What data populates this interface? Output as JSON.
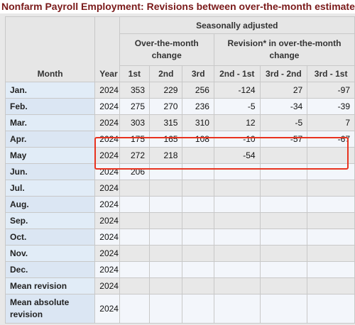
{
  "caption": "Nonfarm Payroll Employment: Revisions between over-the-month estimates",
  "headers": {
    "month": "Month",
    "year": "Year",
    "seasonally_adjusted": "Seasonally adjusted",
    "otm_change": "Over-the-month change",
    "revision": "Revision* in over-the-month change",
    "cols": [
      "1st",
      "2nd",
      "3rd",
      "2nd - 1st",
      "3rd - 2nd",
      "3rd - 1st"
    ]
  },
  "rows": [
    {
      "month": "Jan.",
      "year": "2024",
      "v": [
        "353",
        "229",
        "256",
        "-124",
        "27",
        "-97"
      ]
    },
    {
      "month": "Feb.",
      "year": "2024",
      "v": [
        "275",
        "270",
        "236",
        "-5",
        "-34",
        "-39"
      ]
    },
    {
      "month": "Mar.",
      "year": "2024",
      "v": [
        "303",
        "315",
        "310",
        "12",
        "-5",
        "7"
      ]
    },
    {
      "month": "Apr.",
      "year": "2024",
      "v": [
        "175",
        "165",
        "108",
        "-10",
        "-57",
        "-67"
      ]
    },
    {
      "month": "May",
      "year": "2024",
      "v": [
        "272",
        "218",
        "",
        "-54",
        "",
        ""
      ]
    },
    {
      "month": "Jun.",
      "year": "2024",
      "v": [
        "206",
        "",
        "",
        "",
        "",
        ""
      ]
    },
    {
      "month": "Jul.",
      "year": "2024",
      "v": [
        "",
        "",
        "",
        "",
        "",
        ""
      ]
    },
    {
      "month": "Aug.",
      "year": "2024",
      "v": [
        "",
        "",
        "",
        "",
        "",
        ""
      ]
    },
    {
      "month": "Sep.",
      "year": "2024",
      "v": [
        "",
        "",
        "",
        "",
        "",
        ""
      ]
    },
    {
      "month": "Oct.",
      "year": "2024",
      "v": [
        "",
        "",
        "",
        "",
        "",
        ""
      ]
    },
    {
      "month": "Nov.",
      "year": "2024",
      "v": [
        "",
        "",
        "",
        "",
        "",
        ""
      ]
    },
    {
      "month": "Dec.",
      "year": "2024",
      "v": [
        "",
        "",
        "",
        "",
        "",
        ""
      ]
    },
    {
      "month": "Mean revision",
      "year": "2024",
      "v": [
        "",
        "",
        "",
        "",
        "",
        ""
      ]
    },
    {
      "month": "Mean absolute revision",
      "year": "2024",
      "v": [
        "",
        "",
        "",
        "",
        "",
        ""
      ]
    }
  ],
  "highlight_color": "#e8331f"
}
